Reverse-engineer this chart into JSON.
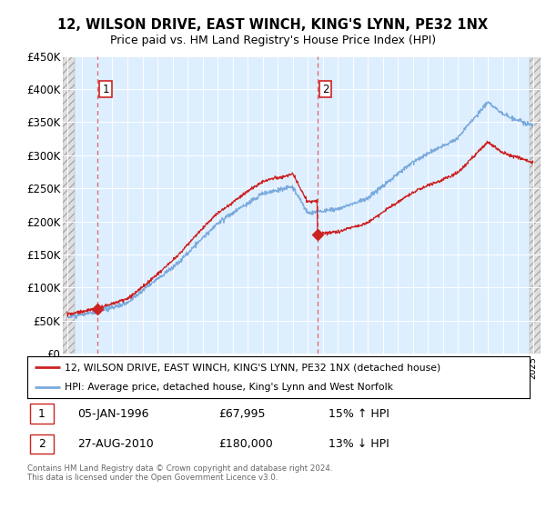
{
  "title": "12, WILSON DRIVE, EAST WINCH, KING'S LYNN, PE32 1NX",
  "subtitle": "Price paid vs. HM Land Registry's House Price Index (HPI)",
  "ylim": [
    0,
    450000
  ],
  "yticks": [
    0,
    50000,
    100000,
    150000,
    200000,
    250000,
    300000,
    350000,
    400000,
    450000
  ],
  "ytick_labels": [
    "£0",
    "£50K",
    "£100K",
    "£150K",
    "£200K",
    "£250K",
    "£300K",
    "£350K",
    "£400K",
    "£450K"
  ],
  "xlim_start": 1993.7,
  "xlim_end": 2025.5,
  "purchase1_x": 1996.02,
  "purchase1_y": 67995,
  "purchase1_label": "1",
  "purchase2_x": 2010.65,
  "purchase2_y": 180000,
  "purchase2_label": "2",
  "bg_color": "#ddeeff",
  "red_line_color": "#cc2222",
  "blue_line_color": "#7aaadd",
  "dashed_line_color": "#dd6666",
  "legend_line1": "12, WILSON DRIVE, EAST WINCH, KING'S LYNN, PE32 1NX (detached house)",
  "legend_line2": "HPI: Average price, detached house, King's Lynn and West Norfolk",
  "annot1_date": "05-JAN-1996",
  "annot1_price": "£67,995",
  "annot1_hpi": "15% ↑ HPI",
  "annot2_date": "27-AUG-2010",
  "annot2_price": "£180,000",
  "annot2_hpi": "13% ↓ HPI",
  "footer": "Contains HM Land Registry data © Crown copyright and database right 2024.\nThis data is licensed under the Open Government Licence v3.0."
}
